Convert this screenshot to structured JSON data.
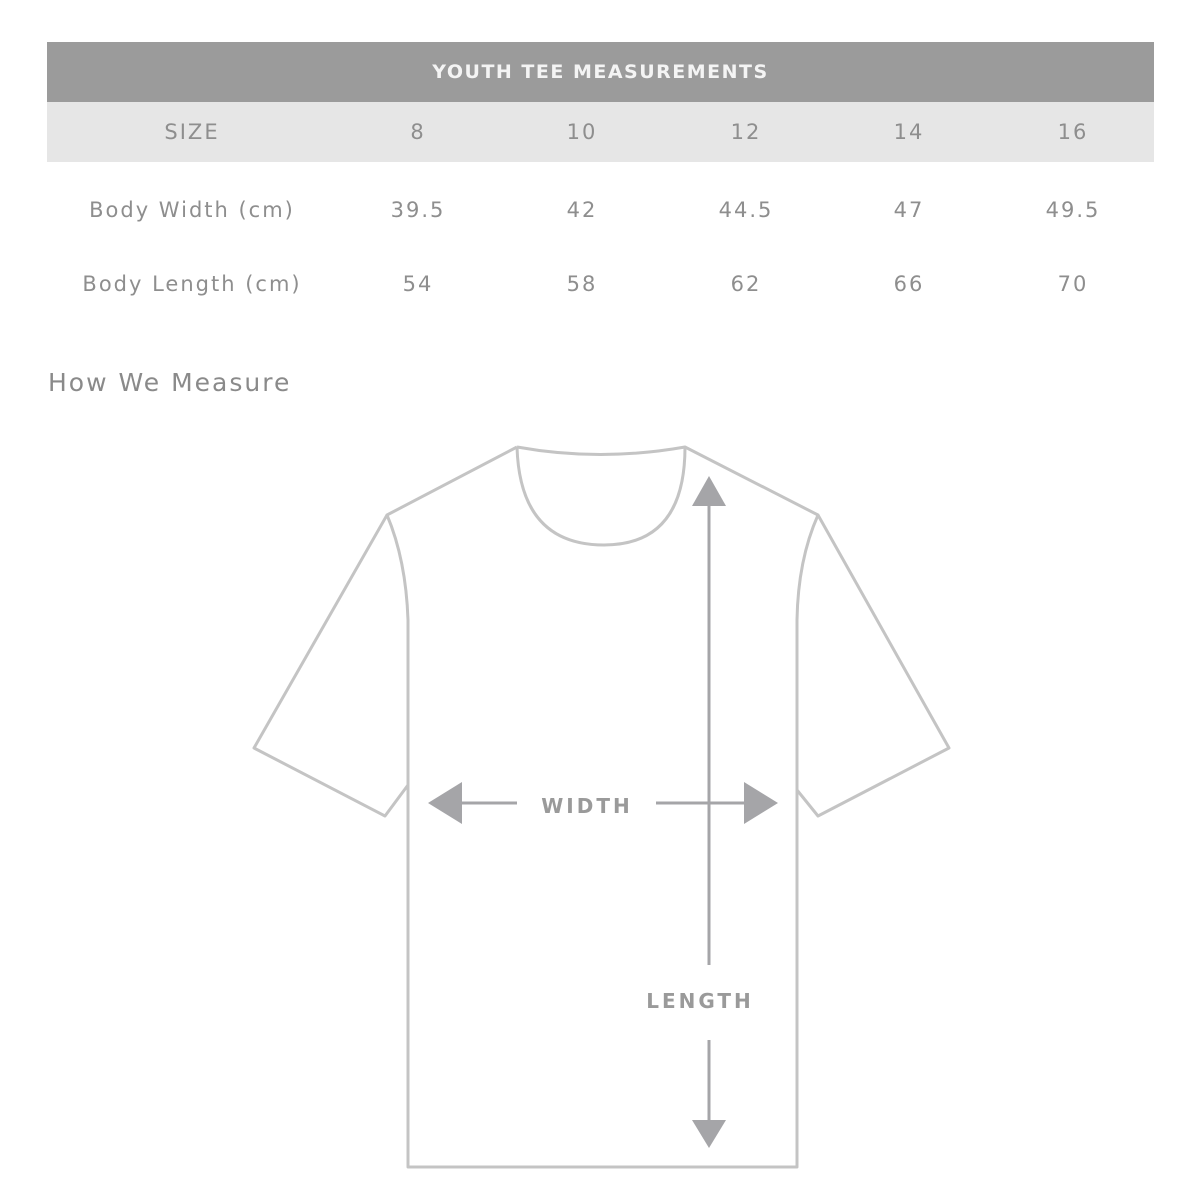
{
  "table": {
    "title": "YOUTH TEE MEASUREMENTS",
    "header": {
      "label": "SIZE",
      "sizes": [
        "8",
        "10",
        "12",
        "14",
        "16"
      ]
    },
    "rows": [
      {
        "label": "Body Width (cm)",
        "values": [
          "39.5",
          "42",
          "44.5",
          "47",
          "49.5"
        ]
      },
      {
        "label": "Body Length (cm)",
        "values": [
          "54",
          "58",
          "62",
          "66",
          "70"
        ]
      }
    ]
  },
  "diagram": {
    "heading": "How We Measure",
    "width_label": "WIDTH",
    "length_label": "LENGTH",
    "colors": {
      "header_bg": "#9b9b9b",
      "size_row_bg": "#e6e6e6",
      "outline": "#c4c4c4",
      "arrow": "#a5a5a8"
    }
  }
}
